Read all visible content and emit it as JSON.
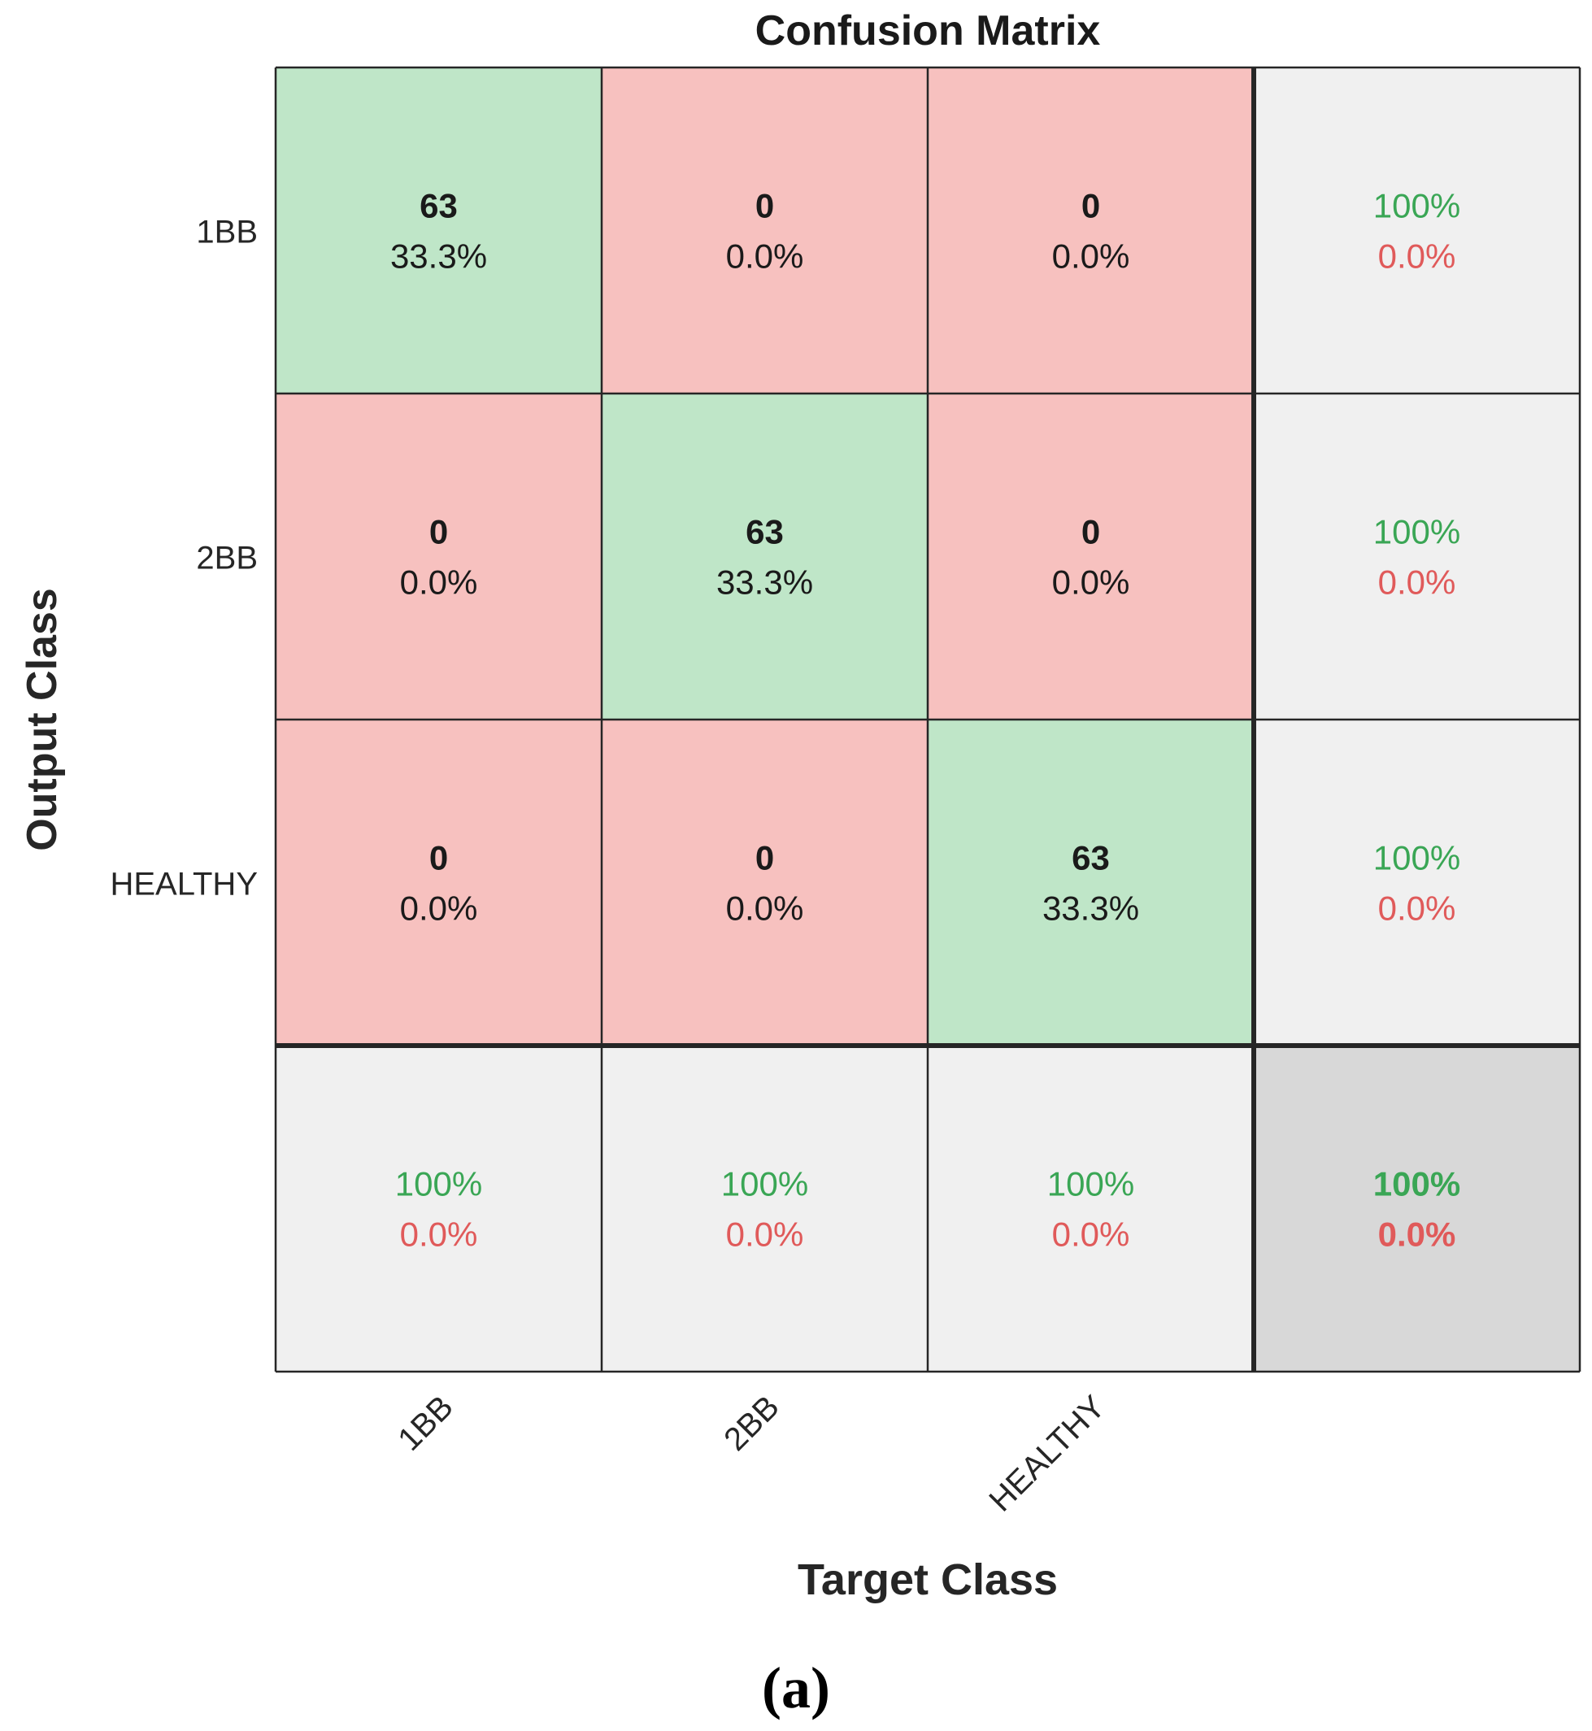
{
  "chart_data": {
    "type": "heatmap",
    "title": "Confusion Matrix",
    "xlabel": "Target Class",
    "ylabel": "Output Class",
    "classes": [
      "1BB",
      "2BB",
      "HEALTHY"
    ],
    "matrix": [
      [
        63,
        0,
        0
      ],
      [
        0,
        63,
        0
      ],
      [
        0,
        0,
        63
      ]
    ],
    "matrix_percent": [
      [
        "33.3%",
        "0.0%",
        "0.0%"
      ],
      [
        "0.0%",
        "33.3%",
        "0.0%"
      ],
      [
        "0.0%",
        "0.0%",
        "33.3%"
      ]
    ],
    "row_summary": [
      {
        "correct": "100%",
        "incorrect": "0.0%"
      },
      {
        "correct": "100%",
        "incorrect": "0.0%"
      },
      {
        "correct": "100%",
        "incorrect": "0.0%"
      }
    ],
    "column_summary": [
      {
        "correct": "100%",
        "incorrect": "0.0%"
      },
      {
        "correct": "100%",
        "incorrect": "0.0%"
      },
      {
        "correct": "100%",
        "incorrect": "0.0%"
      }
    ],
    "overall": {
      "correct": "100%",
      "incorrect": "0.0%"
    },
    "colors": {
      "correct_cell": "#bfe6c8",
      "incorrect_cell": "#f7c1bf",
      "summary_cell": "#f0f0f0",
      "overall_cell": "#d8d8d8",
      "correct_text": "#3aa655",
      "incorrect_text": "#e05a5a",
      "grid_line": "#262626"
    }
  },
  "figure": {
    "panel_label": "(a)"
  }
}
